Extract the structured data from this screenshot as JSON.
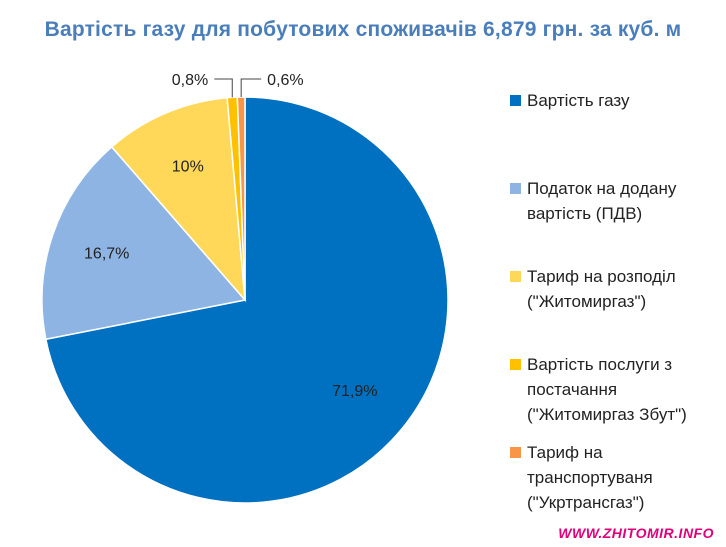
{
  "chart_data": {
    "type": "pie",
    "title": "Вартість газу для побутових споживачів 6,879 грн. за куб. м",
    "slices": [
      {
        "label": "Вартість газу",
        "value": 71.9,
        "display": "71,9%",
        "color": "#0070c0"
      },
      {
        "label": "Податок на додану\nвартість (ПДВ)",
        "value": 16.7,
        "display": "16,7%",
        "color": "#8eb4e3"
      },
      {
        "label": "Тариф на розподіл\n(\"Житомиргаз\")",
        "value": 10.0,
        "display": "10%",
        "color": "#ffd85a"
      },
      {
        "label": "Вартість послуги з\nпостачання\n(\"Житомиргаз Збут\")",
        "value": 0.8,
        "display": "0,8%",
        "color": "#ffc000"
      },
      {
        "label": "Тариф на\nтранспортуваня\n(\"Укртрансгаз\")",
        "value": 0.6,
        "display": "0,6%",
        "color": "#f79646"
      }
    ],
    "legend_position": "right"
  },
  "watermark": "WWW.ZHITOMIR.INFO"
}
